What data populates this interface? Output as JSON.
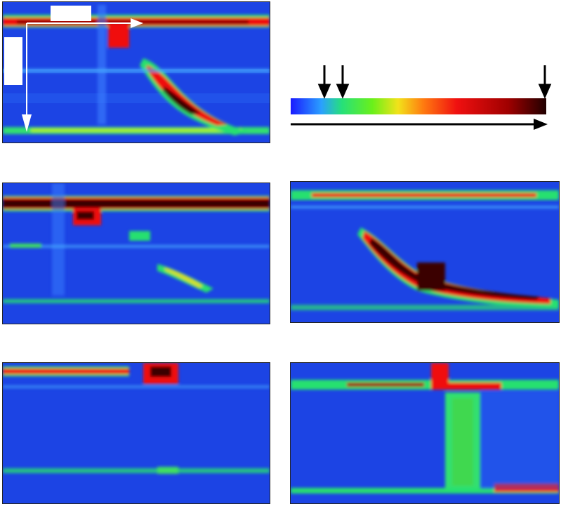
{
  "figure": {
    "panels": [
      {
        "id": "a",
        "caption": "",
        "heat": "diagonal-band"
      },
      {
        "id": "c",
        "caption": "",
        "heat": "faint-diagonal"
      },
      {
        "id": "d",
        "caption": "",
        "heat": "strong-diagonal"
      },
      {
        "id": "e",
        "caption": "",
        "heat": "sparse"
      },
      {
        "id": "f",
        "caption": "",
        "heat": "vertical-column"
      }
    ],
    "legend": {
      "caption": "",
      "colormap": [
        "#1a1aff",
        "#2aa0ff",
        "#26e07a",
        "#6af01a",
        "#f2e21a",
        "#ff7a10",
        "#f01010",
        "#a00000",
        "#200000"
      ],
      "arrows": 3
    },
    "colors": {
      "background": "#1a3fe0",
      "line": "#e01010",
      "core": "#3a0000",
      "glow": "#20e060"
    }
  }
}
